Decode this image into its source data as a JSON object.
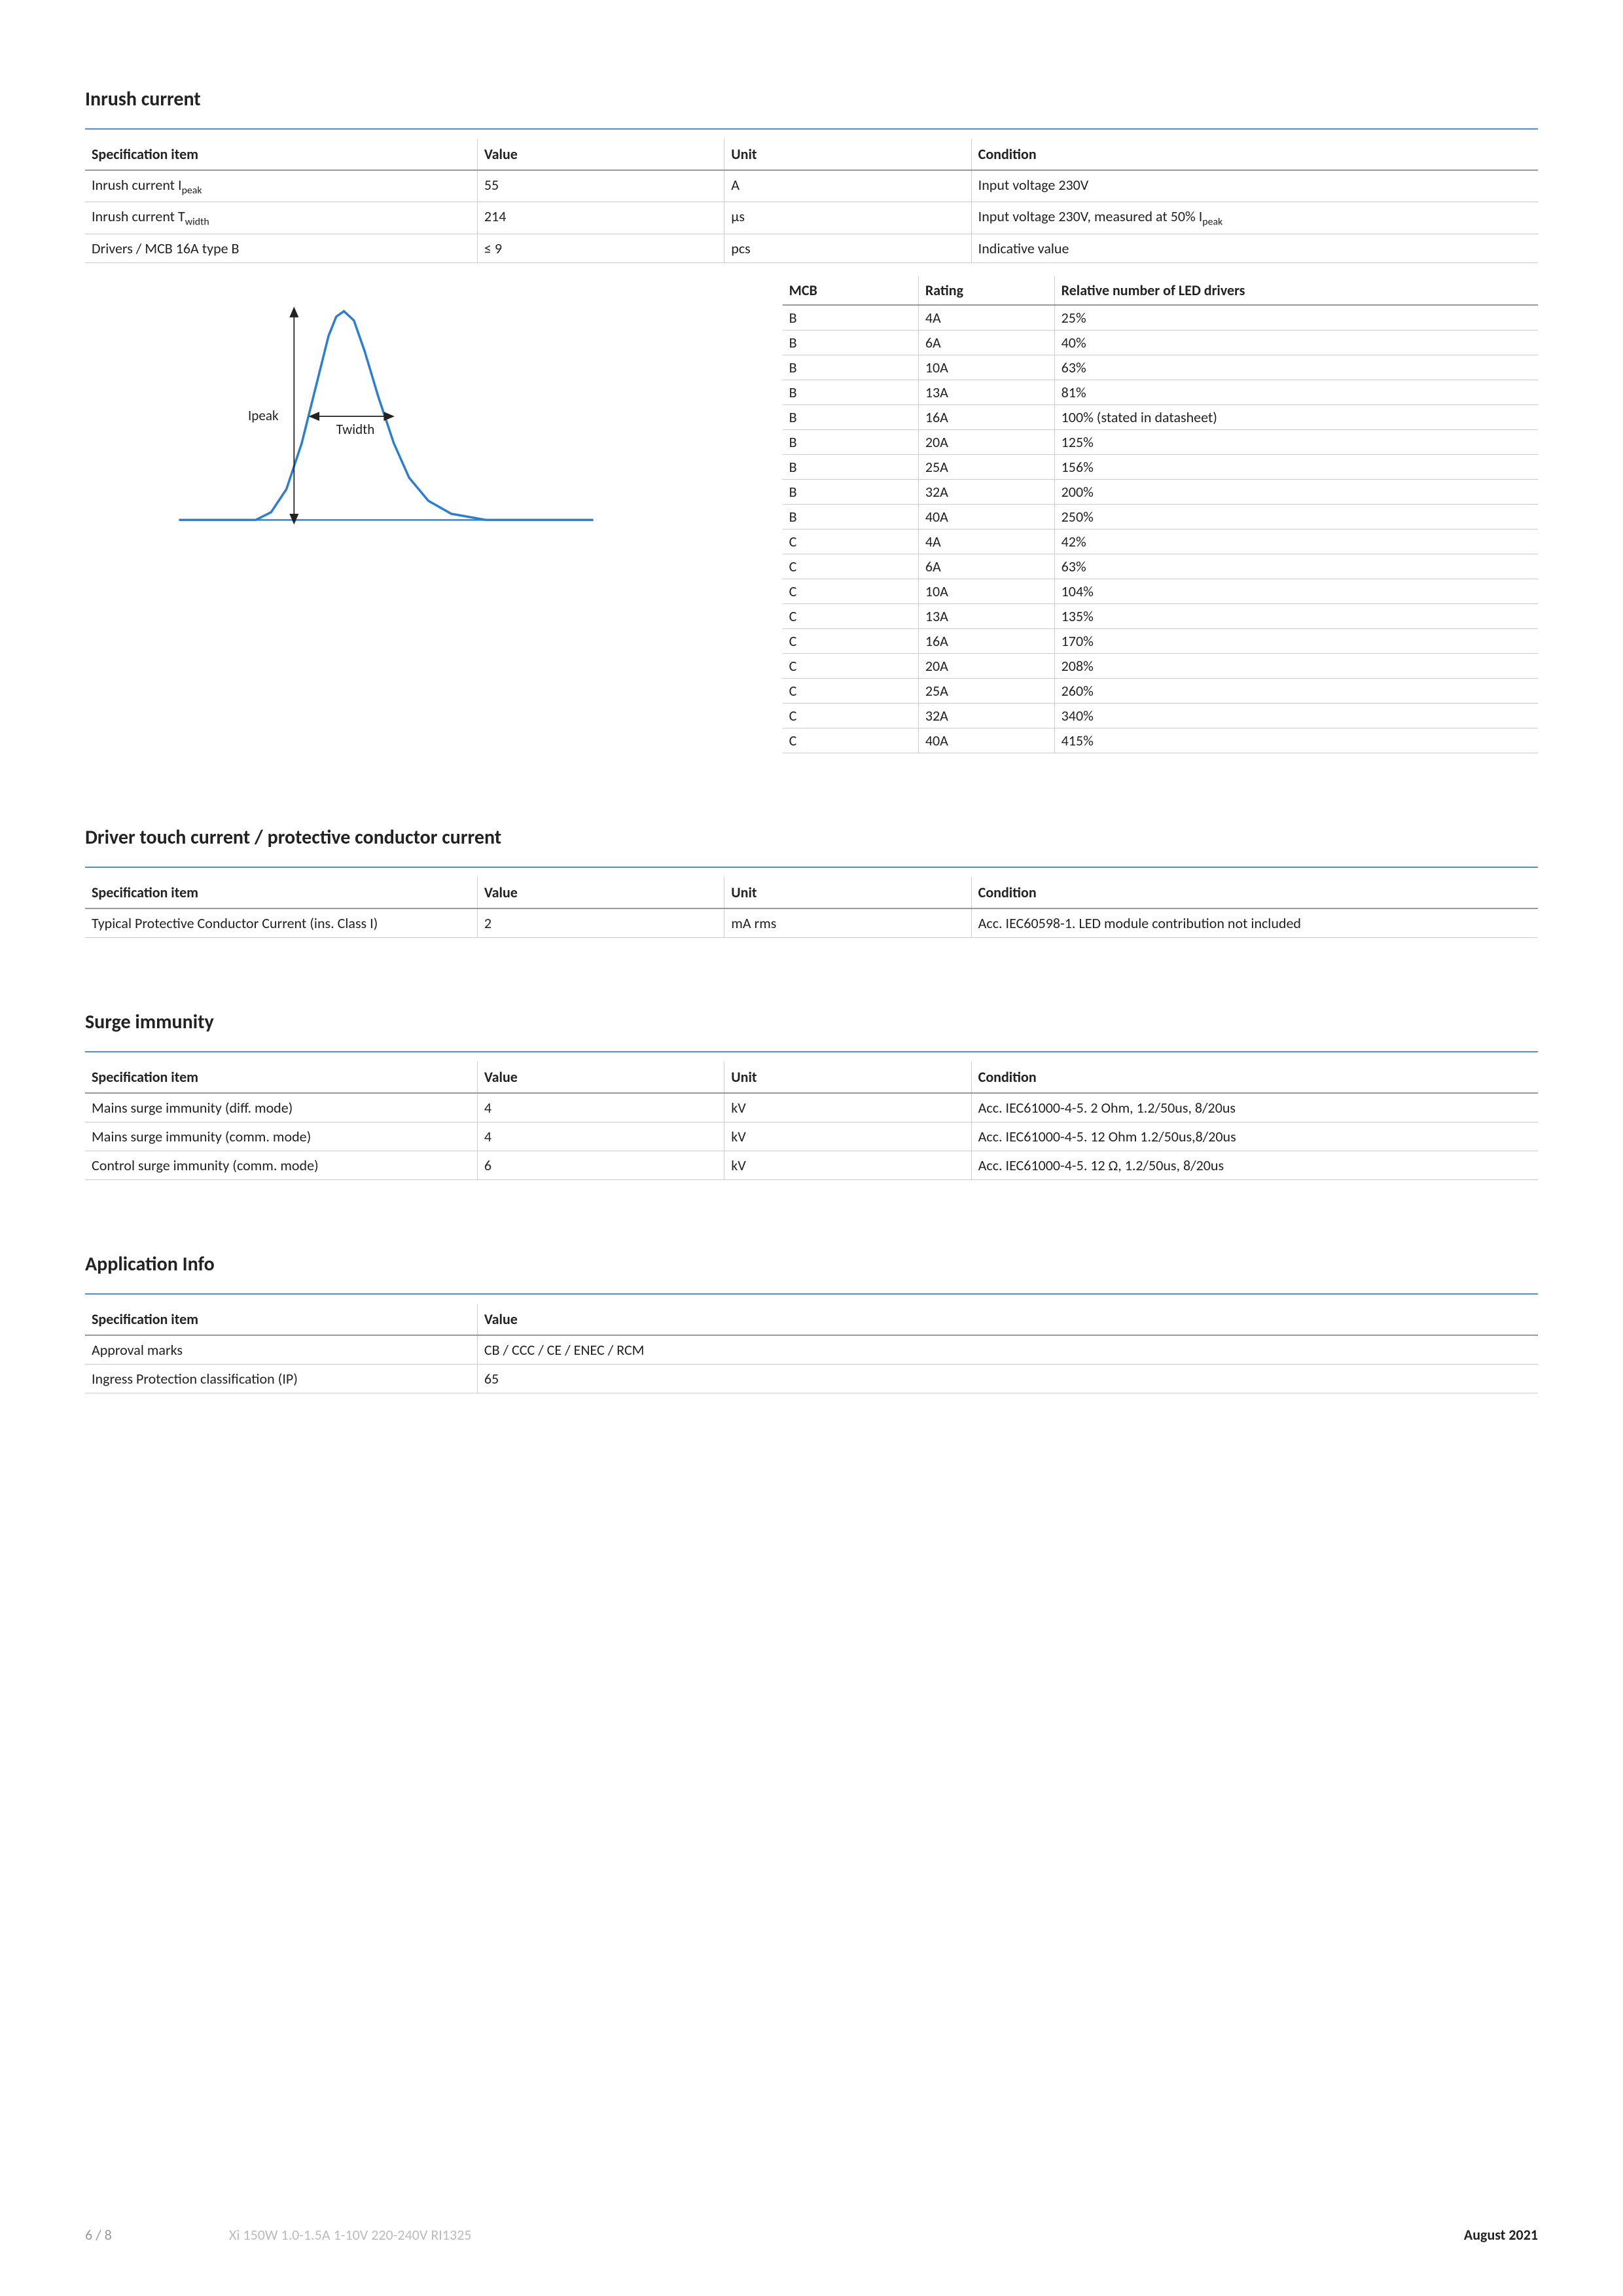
{
  "colors": {
    "rule": "#4a90d9",
    "curve": "#2a7fd4",
    "text": "#222222",
    "border": "#cccccc",
    "header_border": "#999999"
  },
  "sections": {
    "inrush": {
      "title": "Inrush current",
      "headers": {
        "spec": "Specification item",
        "value": "Value",
        "unit": "Unit",
        "cond": "Condition"
      },
      "rows": [
        {
          "spec_html": "Inrush current I<sub>peak</sub>",
          "value": "55",
          "unit": "A",
          "cond": "Input voltage 230V"
        },
        {
          "spec_html": "Inrush current T<sub>width</sub>",
          "value": "214",
          "unit": "µs",
          "cond_html": "Input voltage 230V, measured at 50% I<sub>peak</sub>"
        },
        {
          "spec": "Drivers / MCB 16A type B",
          "value": "≤ 9",
          "unit": "pcs",
          "cond": "Indicative value"
        }
      ]
    },
    "chart": {
      "type": "line",
      "labels": {
        "ipeak": "Ipeak",
        "twidth": "Twidth"
      },
      "curve_color": "#2a7fd4",
      "curve_width": 3,
      "arrow_color": "#222222",
      "background": "#ffffff",
      "points": [
        [
          20,
          300
        ],
        [
          120,
          300
        ],
        [
          140,
          290
        ],
        [
          160,
          260
        ],
        [
          180,
          200
        ],
        [
          200,
          120
        ],
        [
          215,
          60
        ],
        [
          225,
          35
        ],
        [
          235,
          28
        ],
        [
          248,
          40
        ],
        [
          262,
          80
        ],
        [
          280,
          140
        ],
        [
          300,
          200
        ],
        [
          320,
          245
        ],
        [
          345,
          275
        ],
        [
          375,
          292
        ],
        [
          420,
          300
        ],
        [
          560,
          300
        ]
      ]
    },
    "mcb": {
      "headers": {
        "mcb": "MCB",
        "rating": "Rating",
        "rel": "Relative number of LED drivers"
      },
      "rows": [
        {
          "mcb": "B",
          "rating": "4A",
          "rel": "25%"
        },
        {
          "mcb": "B",
          "rating": "6A",
          "rel": "40%"
        },
        {
          "mcb": "B",
          "rating": "10A",
          "rel": "63%"
        },
        {
          "mcb": "B",
          "rating": "13A",
          "rel": "81%"
        },
        {
          "mcb": "B",
          "rating": "16A",
          "rel": "100% (stated in datasheet)"
        },
        {
          "mcb": "B",
          "rating": "20A",
          "rel": "125%"
        },
        {
          "mcb": "B",
          "rating": "25A",
          "rel": "156%"
        },
        {
          "mcb": "B",
          "rating": "32A",
          "rel": "200%"
        },
        {
          "mcb": "B",
          "rating": "40A",
          "rel": "250%"
        },
        {
          "mcb": "C",
          "rating": "4A",
          "rel": "42%"
        },
        {
          "mcb": "C",
          "rating": "6A",
          "rel": "63%"
        },
        {
          "mcb": "C",
          "rating": "10A",
          "rel": "104%"
        },
        {
          "mcb": "C",
          "rating": "13A",
          "rel": "135%"
        },
        {
          "mcb": "C",
          "rating": "16A",
          "rel": "170%"
        },
        {
          "mcb": "C",
          "rating": "20A",
          "rel": "208%"
        },
        {
          "mcb": "C",
          "rating": "25A",
          "rel": "260%"
        },
        {
          "mcb": "C",
          "rating": "32A",
          "rel": "340%"
        },
        {
          "mcb": "C",
          "rating": "40A",
          "rel": "415%"
        }
      ]
    },
    "touch": {
      "title": "Driver touch current / protective conductor current",
      "headers": {
        "spec": "Specification item",
        "value": "Value",
        "unit": "Unit",
        "cond": "Condition"
      },
      "rows": [
        {
          "spec": "Typical Protective Conductor Current (ins. Class I)",
          "value": "2",
          "unit": "mA rms",
          "cond": "Acc. IEC60598-1. LED module contribution not included"
        }
      ]
    },
    "surge": {
      "title": "Surge immunity",
      "headers": {
        "spec": "Specification item",
        "value": "Value",
        "unit": "Unit",
        "cond": "Condition"
      },
      "rows": [
        {
          "spec": "Mains surge immunity (diff. mode)",
          "value": "4",
          "unit": "kV",
          "cond": "Acc. IEC61000-4-5. 2 Ohm, 1.2/50us, 8/20us"
        },
        {
          "spec": "Mains surge immunity (comm. mode)",
          "value": "4",
          "unit": "kV",
          "cond": "Acc. IEC61000-4-5. 12 Ohm 1.2/50us,8/20us"
        },
        {
          "spec": "Control surge immunity (comm. mode)",
          "value": "6",
          "unit": "kV",
          "cond": "Acc. IEC61000-4-5. 12 Ω, 1.2/50us, 8/20us"
        }
      ]
    },
    "app": {
      "title": "Application Info",
      "headers": {
        "spec": "Specification item",
        "value": "Value"
      },
      "rows": [
        {
          "spec": "Approval marks",
          "value": "CB / CCC / CE / ENEC / RCM"
        },
        {
          "spec": "Ingress Protection classification (IP)",
          "value": "65"
        }
      ]
    }
  },
  "footer": {
    "page": "6 / 8",
    "product": "Xi 150W 1.0-1.5A 1-10V 220-240V RI1325",
    "date": "August 2021"
  }
}
